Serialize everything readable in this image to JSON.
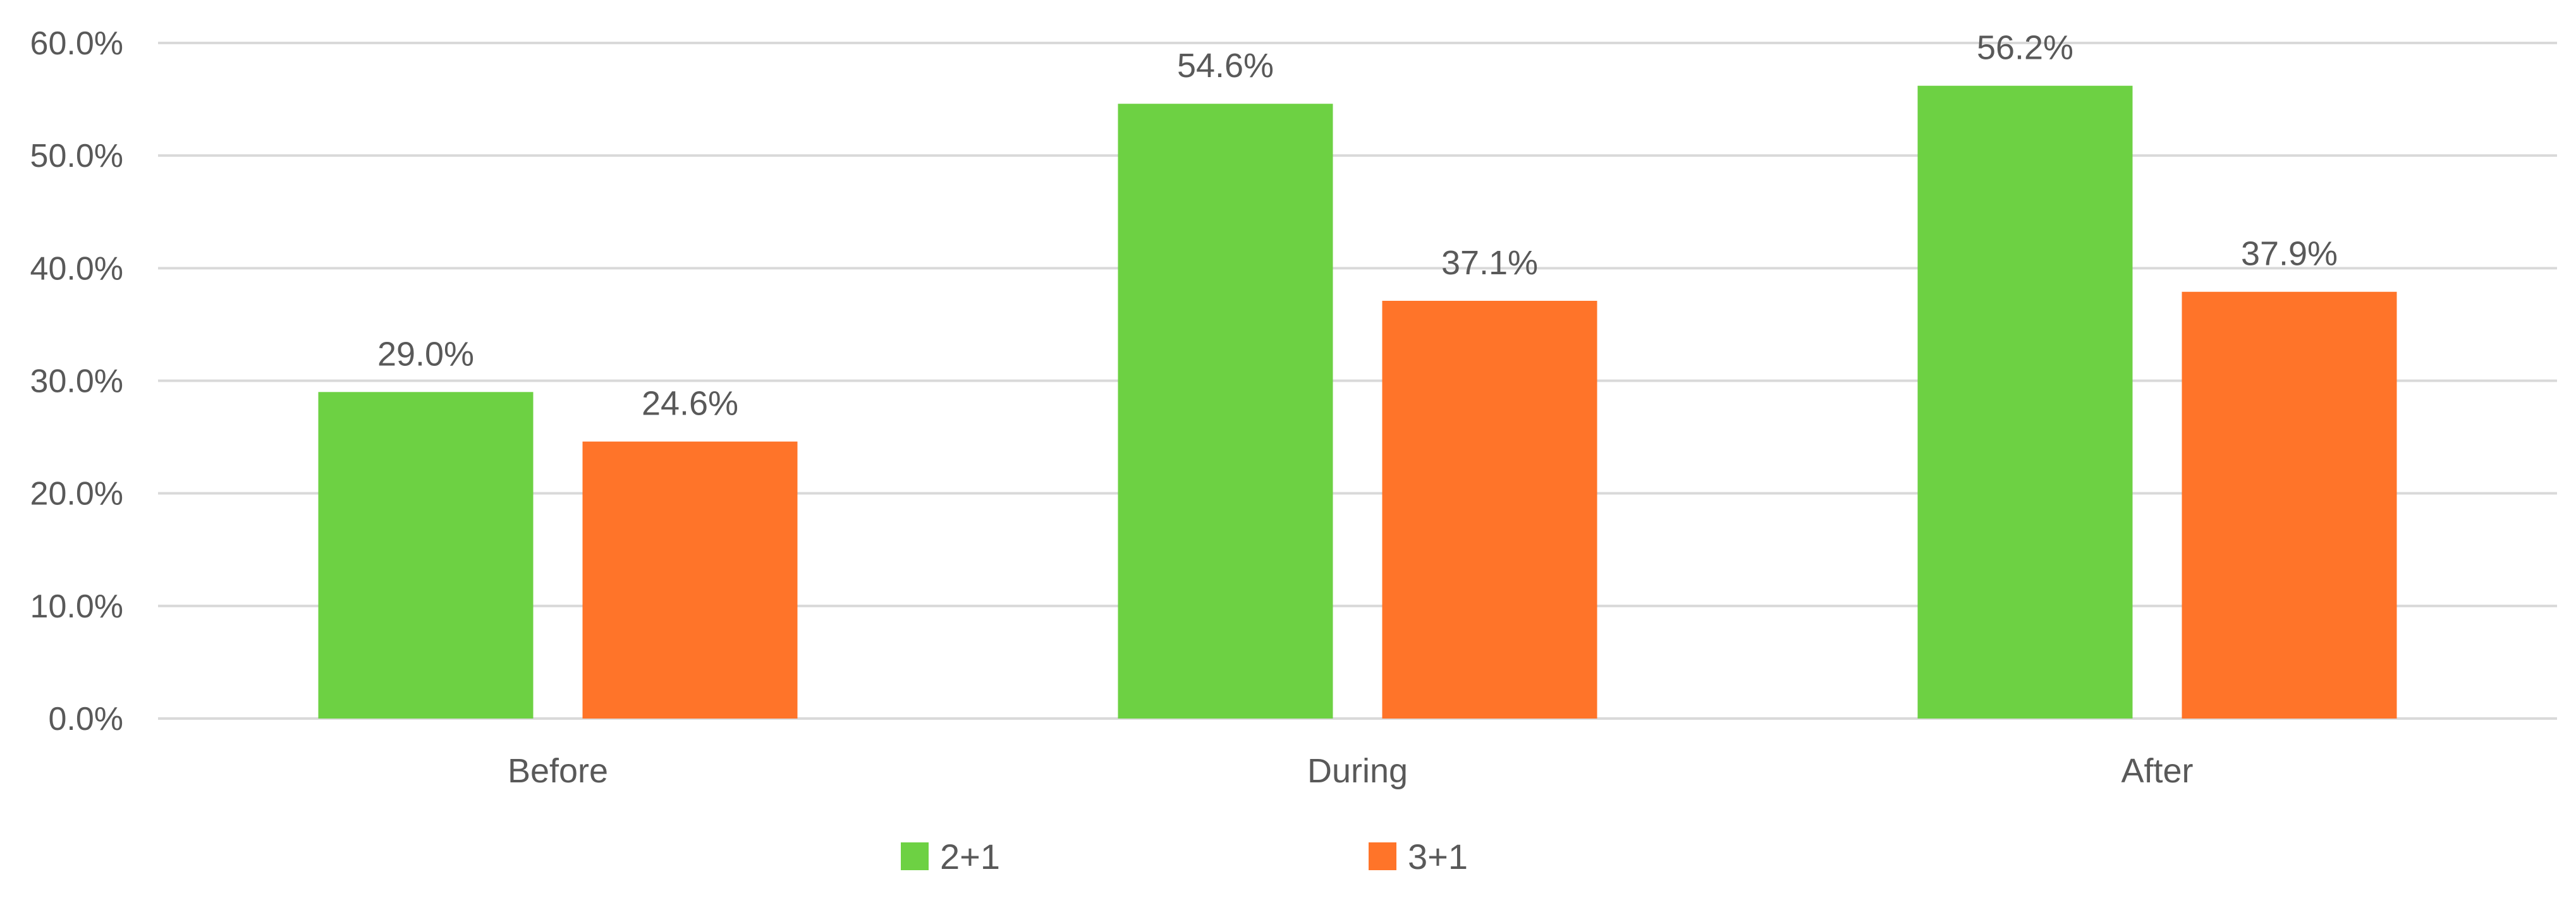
{
  "chart_data": {
    "type": "bar",
    "title": "",
    "xlabel": "",
    "ylabel": "",
    "categories": [
      "Before",
      "During",
      "After"
    ],
    "series": [
      {
        "name": "2+1",
        "color": "#6DD143",
        "values": [
          29.0,
          54.6,
          56.2
        ],
        "labels": [
          "29.0%",
          "54.6%",
          "56.2%"
        ]
      },
      {
        "name": "3+1",
        "color": "#FF7429",
        "values": [
          24.6,
          37.1,
          37.9
        ],
        "labels": [
          "24.6%",
          "37.1%",
          "37.9%"
        ]
      }
    ],
    "ylim": [
      0,
      60
    ],
    "yticks": [
      0,
      10,
      20,
      30,
      40,
      50,
      60
    ],
    "ytick_labels": [
      "0.0%",
      "10.0%",
      "20.0%",
      "30.0%",
      "40.0%",
      "50.0%",
      "60.0%"
    ],
    "grid": true,
    "legend": "bottom-center",
    "colors": {
      "gridline": "#D9D9D9",
      "text": "#595959"
    }
  }
}
